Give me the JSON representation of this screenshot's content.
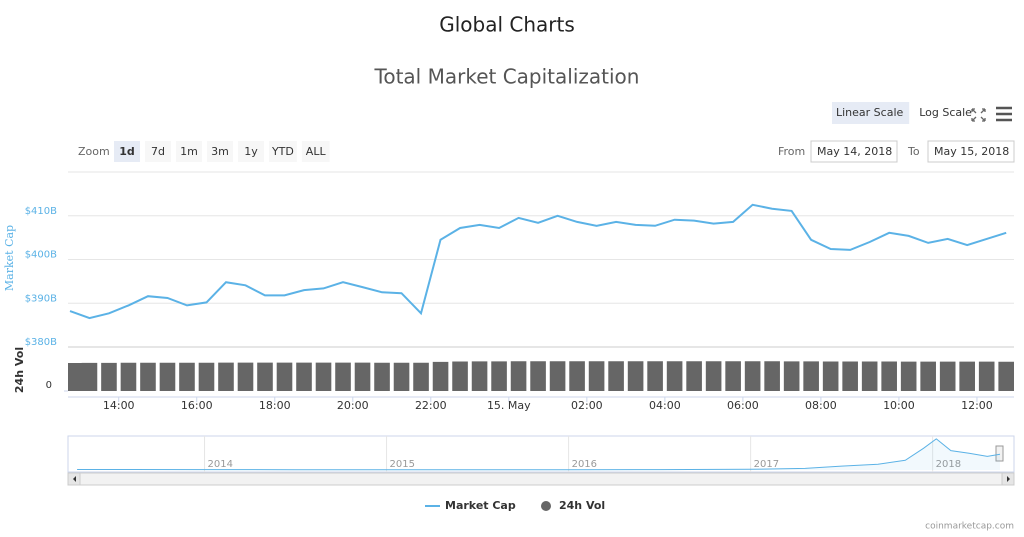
{
  "header": {
    "title": "Global Charts"
  },
  "controls": {
    "scale_buttons": [
      "Linear Scale",
      "Log Scale"
    ],
    "zoom_label": "Zoom",
    "zoom_buttons": [
      "1d",
      "7d",
      "1m",
      "3m",
      "1y",
      "YTD",
      "ALL"
    ],
    "from_label": "From",
    "from_date": "May 14, 2018",
    "to_label": "To",
    "to_date": "May 15, 2018"
  },
  "chart_data": {
    "type": "line",
    "title": "Total Market Capitalization",
    "y_label": "Market Cap",
    "y2_label": "24h Vol",
    "x": [
      12.75,
      13.25,
      13.75,
      14.25,
      14.75,
      15.25,
      15.75,
      16.25,
      16.75,
      17.25,
      17.75,
      18.25,
      18.75,
      19.25,
      19.75,
      20.25,
      20.75,
      21.25,
      21.75,
      22.25,
      22.75,
      23.25,
      23.75,
      24.25,
      24.75,
      25.25,
      25.75,
      26.25,
      26.75,
      27.25,
      27.75,
      28.25,
      28.75,
      29.25,
      29.75,
      30.25,
      30.75,
      31.25,
      31.75,
      32.25,
      32.75,
      33.25,
      33.75,
      34.25,
      34.75,
      35.25,
      35.75,
      36.25,
      36.75
    ],
    "xlim": [
      12.7,
      36.95
    ],
    "xticks": [
      {
        "value": 14,
        "label": "14:00"
      },
      {
        "value": 16,
        "label": "16:00"
      },
      {
        "value": 18,
        "label": "18:00"
      },
      {
        "value": 20,
        "label": "20:00"
      },
      {
        "value": 22,
        "label": "22:00"
      },
      {
        "value": 24,
        "label": "15. May"
      },
      {
        "value": 26,
        "label": "02:00"
      },
      {
        "value": 28,
        "label": "04:00"
      },
      {
        "value": 30,
        "label": "06:00"
      },
      {
        "value": 32,
        "label": "08:00"
      },
      {
        "value": 34,
        "label": "10:00"
      },
      {
        "value": 36,
        "label": "12:00"
      }
    ],
    "ylim": [
      380,
      420
    ],
    "yticks": [
      {
        "value": 380,
        "label": "$380B"
      },
      {
        "value": 390,
        "label": "$390B"
      },
      {
        "value": 400,
        "label": "$400B"
      },
      {
        "value": 410,
        "label": "$410B"
      }
    ],
    "y2lim": [
      0,
      24
    ],
    "y2ticks": [
      0
    ],
    "grid": true,
    "series": [
      {
        "name": "Market Cap",
        "color": "#5bb2e6",
        "values": [
          388.2,
          386.6,
          387.7,
          389.5,
          391.6,
          391.2,
          389.5,
          390.2,
          394.8,
          394.1,
          391.8,
          391.8,
          393,
          393.4,
          394.8,
          393.7,
          392.5,
          392.3,
          387.7,
          404.5,
          407.2,
          407.9,
          407.2,
          409.5,
          408.4,
          410,
          408.6,
          407.7,
          408.6,
          407.9,
          407.7,
          409.1,
          408.9,
          408.2,
          408.6,
          412.5,
          411.6,
          411.1,
          404.5,
          402.4,
          402.2,
          404,
          406.1,
          405.4,
          403.8,
          404.7,
          403.3,
          404.7,
          406.1
        ]
      },
      {
        "name": "24h Vol",
        "color": "#666666",
        "axis": "y2",
        "values": [
          22.4,
          22.5,
          22.5,
          22.6,
          22.6,
          22.6,
          22.6,
          22.6,
          22.7,
          22.7,
          22.7,
          22.7,
          22.7,
          22.7,
          22.7,
          22.7,
          22.6,
          22.6,
          22.6,
          23.3,
          23.6,
          23.7,
          23.7,
          23.8,
          23.8,
          23.8,
          23.8,
          23.8,
          23.8,
          23.8,
          23.8,
          23.8,
          23.8,
          23.8,
          23.8,
          23.8,
          23.8,
          23.7,
          23.7,
          23.6,
          23.6,
          23.6,
          23.6,
          23.5,
          23.5,
          23.5,
          23.5,
          23.5,
          23.4
        ]
      }
    ],
    "navigator": {
      "x": [
        2013.3,
        2013.6,
        2014,
        2014.5,
        2015,
        2015.5,
        2016,
        2016.5,
        2017,
        2017.3,
        2017.5,
        2017.7,
        2017.85,
        2017.95,
        2018.02,
        2018.1,
        2018.2,
        2018.3,
        2018.37
      ],
      "values": [
        12,
        14,
        10,
        8,
        5,
        6,
        8,
        10,
        18,
        40,
        100,
        150,
        250,
        560,
        800,
        500,
        430,
        350,
        405
      ],
      "xlim": [
        2013.25,
        2018.37
      ],
      "ylim": [
        0,
        850
      ],
      "xticks": [
        2014,
        2015,
        2016,
        2017,
        2018
      ]
    }
  },
  "credit": "coinmarketcap.com"
}
